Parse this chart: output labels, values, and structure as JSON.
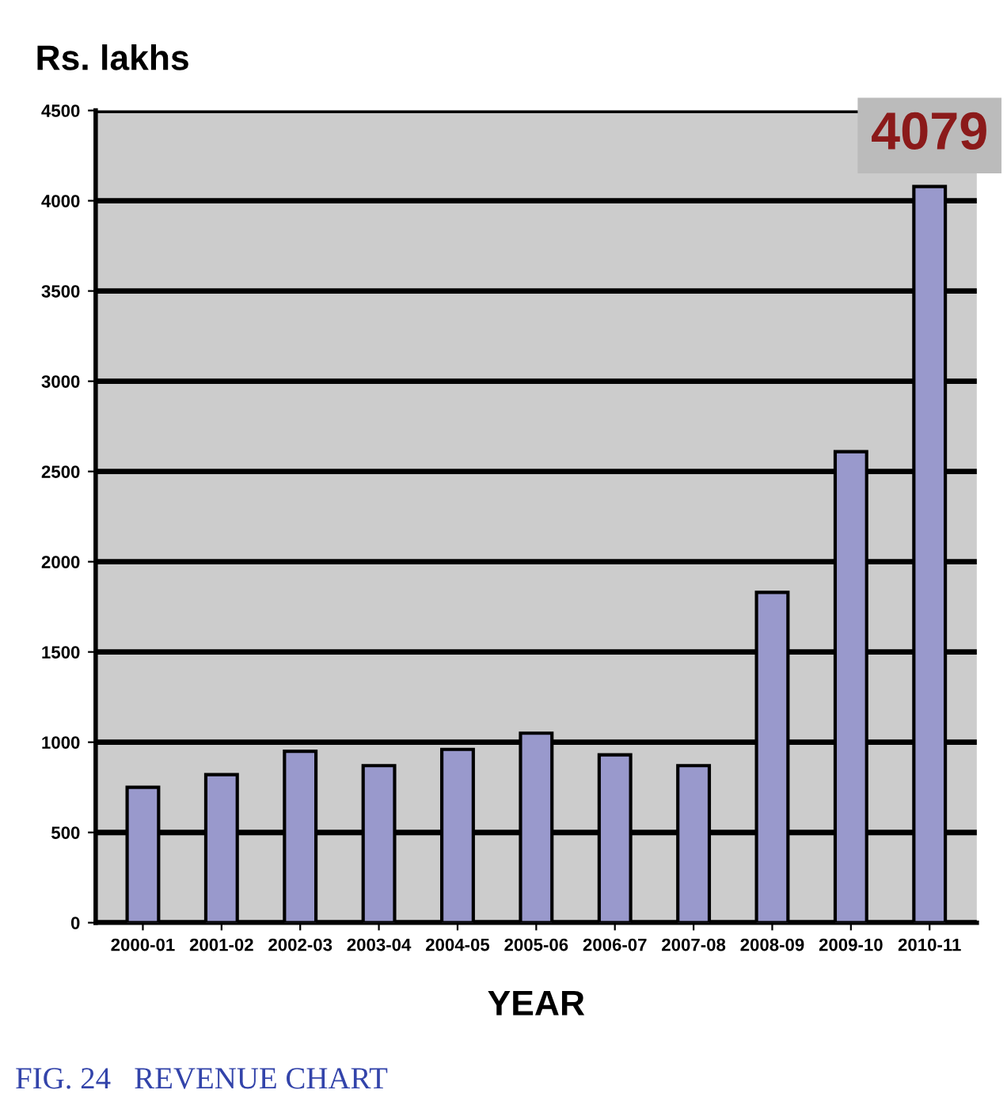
{
  "chart_data": {
    "type": "bar",
    "title": "Rs. lakhs",
    "xlabel": "YEAR",
    "categories": [
      "2000-01",
      "2001-02",
      "2002-03",
      "2003-04",
      "2004-05",
      "2005-06",
      "2006-07",
      "2007-08",
      "2008-09",
      "2009-10",
      "2010-11"
    ],
    "values": [
      750,
      820,
      950,
      870,
      960,
      1050,
      930,
      870,
      1830,
      2610,
      4079
    ],
    "value_labels": [
      null,
      null,
      null,
      null,
      null,
      null,
      null,
      null,
      null,
      null,
      "4079"
    ],
    "color": "#9999cc",
    "ylim": [
      0,
      4500
    ],
    "yticks": [
      0,
      500,
      1000,
      1500,
      2000,
      2500,
      3000,
      3500,
      4000,
      4500
    ],
    "grid": "y",
    "annotations": [
      "FIG. 24   REVENUE CHART"
    ]
  }
}
